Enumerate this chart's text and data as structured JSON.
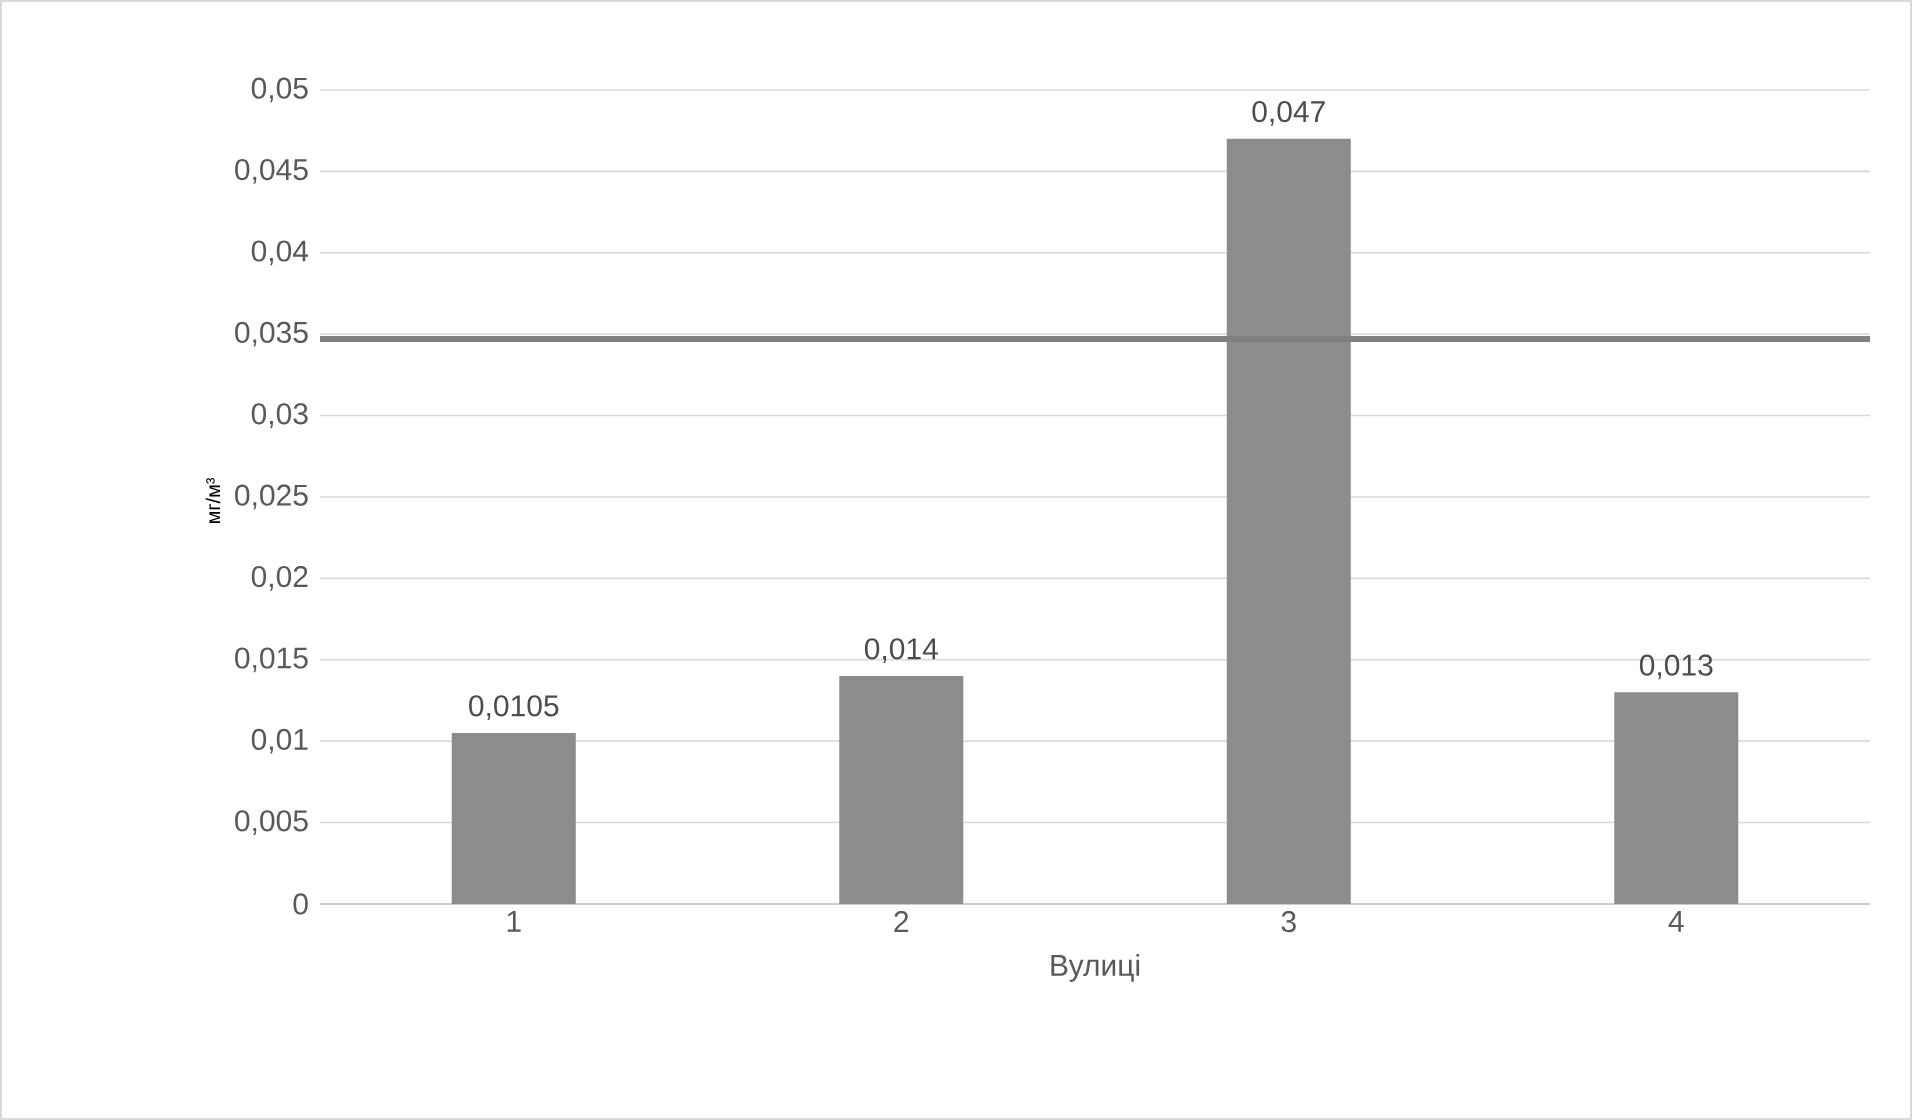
{
  "chart_data": {
    "type": "bar",
    "xlabel": "Вулиці",
    "ylabel": "мг/м³",
    "categories": [
      "1",
      "2",
      "3",
      "4"
    ],
    "values": [
      0.0105,
      0.014,
      0.047,
      0.013
    ],
    "value_labels": [
      "0,0105",
      "0,014",
      "0,047",
      "0,013"
    ],
    "color": "#8c8c8c",
    "ylim": [
      0,
      0.05
    ],
    "yticks": [
      {
        "value": 0,
        "label": "0"
      },
      {
        "value": 0.005,
        "label": "0,005"
      },
      {
        "value": 0.01,
        "label": "0,01"
      },
      {
        "value": 0.015,
        "label": "0,015"
      },
      {
        "value": 0.02,
        "label": "0,02"
      },
      {
        "value": 0.025,
        "label": "0,025"
      },
      {
        "value": 0.03,
        "label": "0,03"
      },
      {
        "value": 0.035,
        "label": "0,035"
      },
      {
        "value": 0.04,
        "label": "0,04"
      },
      {
        "value": 0.045,
        "label": "0,045"
      },
      {
        "value": 0.05,
        "label": "0,05"
      }
    ],
    "grid": "y",
    "ref_lines": [
      {
        "axis": "y",
        "value": 0.0347,
        "color": "#808080"
      }
    ]
  }
}
